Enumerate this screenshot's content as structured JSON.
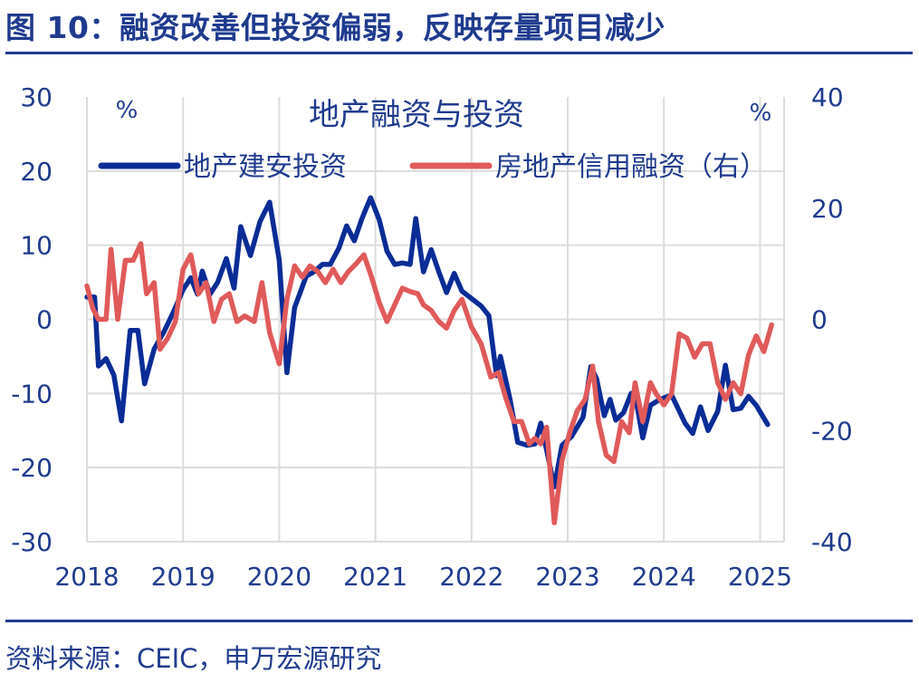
{
  "figure": {
    "title": "图 10：融资改善但投资偏弱，反映存量项目减少",
    "source": "资料来源：CEIC，申万宏源研究"
  },
  "colors": {
    "series1": "#0a2c96",
    "series2": "#e05a5a",
    "text": "#1f3b8f",
    "grid": "#dcdcdc"
  },
  "chart_data": {
    "type": "line",
    "title": "地产融资与投资",
    "left_axis": {
      "unit": "%",
      "ylim": [
        -30,
        30
      ],
      "ticks": [
        -30,
        -20,
        -10,
        0,
        10,
        20,
        30
      ]
    },
    "right_axis": {
      "unit": "%",
      "ylim": [
        -40,
        40
      ],
      "ticks": [
        -40,
        -20,
        0,
        20,
        40
      ]
    },
    "x_ticks": [
      "2018",
      "2019",
      "2020",
      "2021",
      "2022",
      "2023",
      "2024",
      "2025"
    ],
    "x_range": [
      2018.0,
      2025.25
    ],
    "grid": true,
    "legend_position": "top",
    "series": [
      {
        "name": "地产建安投资",
        "axis": "left",
        "color": "#0a2c96",
        "points": [
          [
            2018.0,
            3.0
          ],
          [
            2018.08,
            3.0
          ],
          [
            2018.12,
            -6.3
          ],
          [
            2018.2,
            -5.3
          ],
          [
            2018.28,
            -7.5
          ],
          [
            2018.36,
            -13.7
          ],
          [
            2018.45,
            -1.5
          ],
          [
            2018.53,
            -1.5
          ],
          [
            2018.6,
            -8.7
          ],
          [
            2018.7,
            -4.0
          ],
          [
            2018.8,
            -1.7
          ],
          [
            2018.9,
            1.0
          ],
          [
            2019.0,
            4.0
          ],
          [
            2019.08,
            5.6
          ],
          [
            2019.15,
            3.4
          ],
          [
            2019.2,
            6.5
          ],
          [
            2019.28,
            3.4
          ],
          [
            2019.36,
            5.0
          ],
          [
            2019.45,
            8.2
          ],
          [
            2019.53,
            4.2
          ],
          [
            2019.6,
            12.5
          ],
          [
            2019.7,
            8.6
          ],
          [
            2019.8,
            13.2
          ],
          [
            2019.9,
            15.8
          ],
          [
            2020.0,
            8.0
          ],
          [
            2020.08,
            -7.2
          ],
          [
            2020.16,
            1.6
          ],
          [
            2020.28,
            5.8
          ],
          [
            2020.36,
            6.4
          ],
          [
            2020.45,
            7.4
          ],
          [
            2020.53,
            7.4
          ],
          [
            2020.62,
            9.6
          ],
          [
            2020.7,
            12.6
          ],
          [
            2020.78,
            10.6
          ],
          [
            2020.86,
            13.6
          ],
          [
            2020.95,
            16.4
          ],
          [
            2021.04,
            13.4
          ],
          [
            2021.12,
            9.2
          ],
          [
            2021.2,
            7.4
          ],
          [
            2021.28,
            7.6
          ],
          [
            2021.36,
            7.4
          ],
          [
            2021.42,
            13.6
          ],
          [
            2021.5,
            6.4
          ],
          [
            2021.58,
            9.4
          ],
          [
            2021.66,
            6.4
          ],
          [
            2021.74,
            3.6
          ],
          [
            2021.82,
            6.2
          ],
          [
            2021.9,
            3.8
          ],
          [
            2022.0,
            2.8
          ],
          [
            2022.1,
            1.8
          ],
          [
            2022.18,
            0.5
          ],
          [
            2022.26,
            -7.6
          ],
          [
            2022.3,
            -5.0
          ],
          [
            2022.4,
            -10.8
          ],
          [
            2022.48,
            -16.6
          ],
          [
            2022.58,
            -17.0
          ],
          [
            2022.66,
            -16.8
          ],
          [
            2022.72,
            -14.0
          ],
          [
            2022.78,
            -17.6
          ],
          [
            2022.86,
            -22.6
          ],
          [
            2022.94,
            -17.0
          ],
          [
            2023.04,
            -15.8
          ],
          [
            2023.16,
            -13.2
          ],
          [
            2023.24,
            -6.4
          ],
          [
            2023.3,
            -8.0
          ],
          [
            2023.38,
            -13.0
          ],
          [
            2023.44,
            -10.8
          ],
          [
            2023.5,
            -13.6
          ],
          [
            2023.58,
            -12.6
          ],
          [
            2023.66,
            -10.0
          ],
          [
            2023.72,
            -11.6
          ],
          [
            2023.78,
            -16.0
          ],
          [
            2023.86,
            -11.6
          ],
          [
            2023.96,
            -10.8
          ],
          [
            2024.08,
            -10.2
          ],
          [
            2024.22,
            -14.0
          ],
          [
            2024.3,
            -15.4
          ],
          [
            2024.38,
            -11.8
          ],
          [
            2024.46,
            -15.0
          ],
          [
            2024.56,
            -12.4
          ],
          [
            2024.64,
            -6.2
          ],
          [
            2024.72,
            -12.2
          ],
          [
            2024.8,
            -12.0
          ],
          [
            2024.88,
            -10.4
          ],
          [
            2024.96,
            -11.6
          ],
          [
            2025.08,
            -14.2
          ]
        ]
      },
      {
        "name": "房地产信用融资（右）",
        "axis": "right",
        "color": "#e05a5a",
        "points": [
          [
            2018.0,
            6.0
          ],
          [
            2018.06,
            2.0
          ],
          [
            2018.12,
            0.0
          ],
          [
            2018.2,
            0.0
          ],
          [
            2018.25,
            12.6
          ],
          [
            2018.32,
            0.0
          ],
          [
            2018.4,
            10.6
          ],
          [
            2018.48,
            10.6
          ],
          [
            2018.56,
            13.6
          ],
          [
            2018.62,
            4.6
          ],
          [
            2018.7,
            6.6
          ],
          [
            2018.76,
            -5.4
          ],
          [
            2018.84,
            -3.4
          ],
          [
            2018.92,
            -0.4
          ],
          [
            2019.0,
            9.0
          ],
          [
            2019.08,
            11.6
          ],
          [
            2019.16,
            4.6
          ],
          [
            2019.24,
            6.6
          ],
          [
            2019.32,
            -0.4
          ],
          [
            2019.4,
            3.6
          ],
          [
            2019.48,
            4.6
          ],
          [
            2019.56,
            -0.4
          ],
          [
            2019.64,
            0.6
          ],
          [
            2019.74,
            -0.4
          ],
          [
            2019.82,
            6.6
          ],
          [
            2019.9,
            -2.4
          ],
          [
            2020.0,
            -8.0
          ],
          [
            2020.08,
            3.6
          ],
          [
            2020.16,
            9.6
          ],
          [
            2020.24,
            7.6
          ],
          [
            2020.32,
            9.6
          ],
          [
            2020.4,
            8.6
          ],
          [
            2020.48,
            6.6
          ],
          [
            2020.56,
            9.0
          ],
          [
            2020.64,
            6.6
          ],
          [
            2020.72,
            8.6
          ],
          [
            2020.8,
            10.0
          ],
          [
            2020.88,
            11.6
          ],
          [
            2020.96,
            7.6
          ],
          [
            2021.04,
            3.0
          ],
          [
            2021.12,
            -0.4
          ],
          [
            2021.2,
            2.6
          ],
          [
            2021.28,
            5.6
          ],
          [
            2021.36,
            5.0
          ],
          [
            2021.44,
            4.6
          ],
          [
            2021.5,
            2.6
          ],
          [
            2021.58,
            1.6
          ],
          [
            2021.66,
            -0.4
          ],
          [
            2021.74,
            -1.6
          ],
          [
            2021.82,
            1.6
          ],
          [
            2021.9,
            3.6
          ],
          [
            2022.0,
            -1.4
          ],
          [
            2022.1,
            -4.4
          ],
          [
            2022.2,
            -10.4
          ],
          [
            2022.28,
            -9.6
          ],
          [
            2022.36,
            -14.4
          ],
          [
            2022.44,
            -18.4
          ],
          [
            2022.52,
            -18.4
          ],
          [
            2022.6,
            -22.4
          ],
          [
            2022.66,
            -21.4
          ],
          [
            2022.72,
            -22.4
          ],
          [
            2022.78,
            -19.4
          ],
          [
            2022.86,
            -36.6
          ],
          [
            2022.94,
            -25.4
          ],
          [
            2023.02,
            -20.4
          ],
          [
            2023.1,
            -16.4
          ],
          [
            2023.18,
            -14.4
          ],
          [
            2023.26,
            -8.4
          ],
          [
            2023.32,
            -18.4
          ],
          [
            2023.4,
            -24.4
          ],
          [
            2023.48,
            -25.6
          ],
          [
            2023.56,
            -18.4
          ],
          [
            2023.64,
            -20.4
          ],
          [
            2023.7,
            -11.4
          ],
          [
            2023.78,
            -18.4
          ],
          [
            2023.86,
            -11.4
          ],
          [
            2023.92,
            -13.4
          ],
          [
            2024.0,
            -15.4
          ],
          [
            2024.08,
            -13.4
          ],
          [
            2024.16,
            -2.6
          ],
          [
            2024.24,
            -3.4
          ],
          [
            2024.32,
            -6.8
          ],
          [
            2024.4,
            -4.4
          ],
          [
            2024.48,
            -4.4
          ],
          [
            2024.56,
            -11.4
          ],
          [
            2024.64,
            -14.4
          ],
          [
            2024.72,
            -11.4
          ],
          [
            2024.8,
            -13.4
          ],
          [
            2024.88,
            -6.4
          ],
          [
            2024.96,
            -3.0
          ],
          [
            2025.04,
            -5.8
          ],
          [
            2025.12,
            -1.0
          ]
        ]
      }
    ]
  }
}
